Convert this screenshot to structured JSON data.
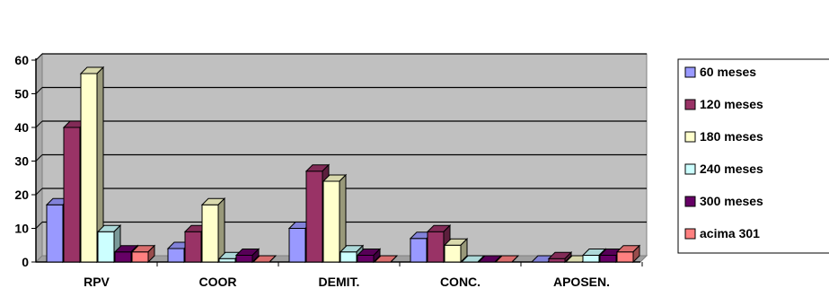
{
  "chart_data": {
    "type": "bar",
    "style": "3d-clustered-column",
    "title": "",
    "xlabel": "",
    "ylabel": "",
    "categories": [
      "RPV",
      "COOR",
      "DEMIT.",
      "CONC.",
      "APOSEN."
    ],
    "ylim": [
      0,
      60
    ],
    "yticks": [
      0,
      10,
      20,
      30,
      40,
      50,
      60
    ],
    "grid": true,
    "plot_background": "#c0c0c0",
    "legend_position": "right",
    "series": [
      {
        "name": "60 meses",
        "color": "#9999ff",
        "values": [
          17,
          4,
          10,
          7,
          0
        ]
      },
      {
        "name": "120 meses",
        "color": "#993366",
        "values": [
          40,
          9,
          27,
          9,
          1
        ]
      },
      {
        "name": "180 meses",
        "color": "#ffffcc",
        "values": [
          56,
          17,
          24,
          5,
          0
        ]
      },
      {
        "name": "240 meses",
        "color": "#ccffff",
        "values": [
          9,
          1,
          3,
          0,
          2
        ]
      },
      {
        "name": "300 meses",
        "color": "#660066",
        "values": [
          3,
          2,
          2,
          0,
          2
        ]
      },
      {
        "name": "acima 301",
        "color": "#ff8080",
        "values": [
          3,
          0,
          0,
          0,
          3
        ]
      }
    ]
  }
}
